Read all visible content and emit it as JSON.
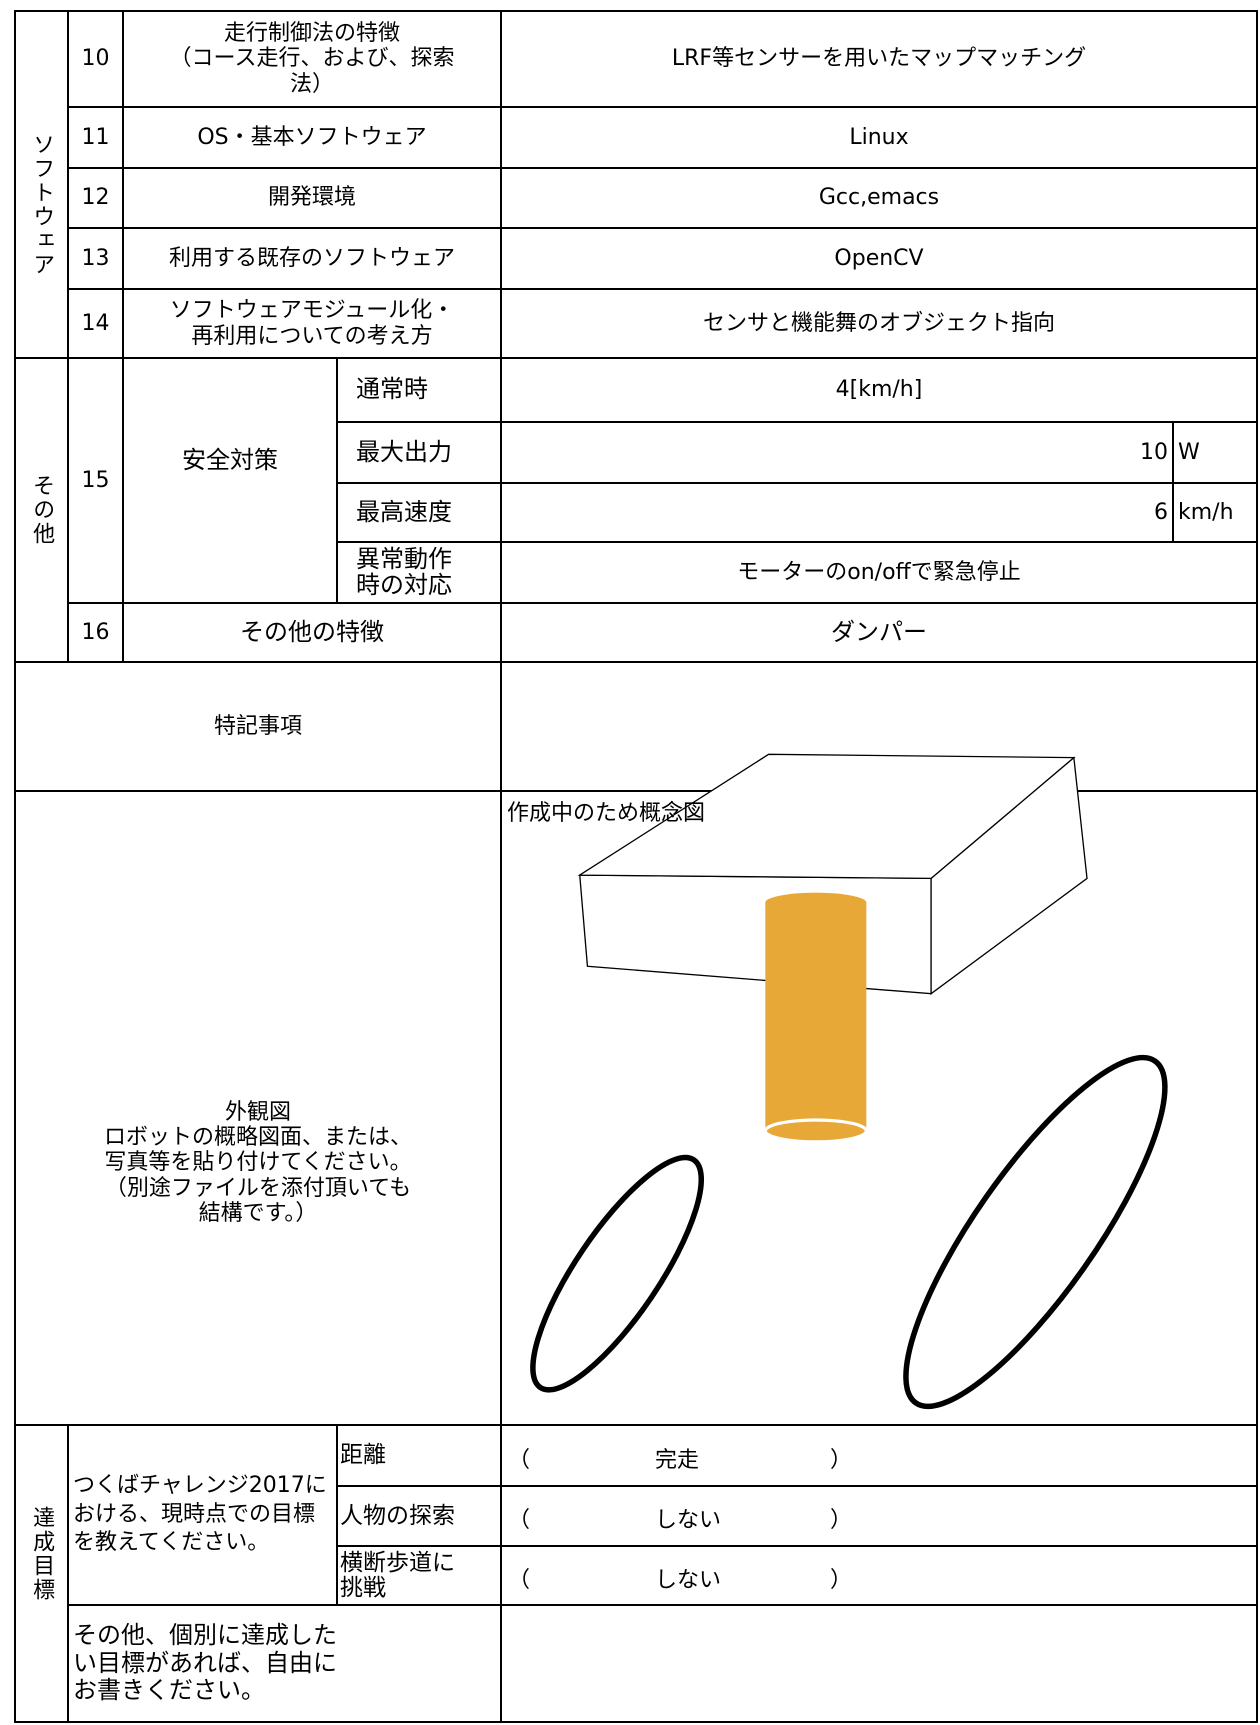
{
  "software": {
    "section": "ソフトウェア",
    "rows": [
      {
        "no": "10",
        "item": "走行制御法の特徴\n（コース走行、および、探索法）",
        "value": "LRF等センサーを用いたマップマッチング"
      },
      {
        "no": "11",
        "item": "OS・基本ソフトウェア",
        "value": "Linux"
      },
      {
        "no": "12",
        "item": "開発環境",
        "value": "Gcc,emacs"
      },
      {
        "no": "13",
        "item": "利用する既存のソフトウェア",
        "value": "OpenCV"
      },
      {
        "no": "14",
        "item": "ソフトウェアモジュール化・\n再利用についての考え方",
        "value": "センサと機能舞のオブジェクト指向"
      }
    ]
  },
  "other": {
    "section": "その他",
    "safety": {
      "no": "15",
      "item": "安全対策",
      "rows": [
        {
          "label": "通常時",
          "value": "4[km/h]"
        },
        {
          "label": "最大出力",
          "value": "10",
          "unit": "W"
        },
        {
          "label": "最高速度",
          "value": "6",
          "unit": "km/h"
        },
        {
          "label": "異常動作時の対応",
          "value": "モーターのon/offで緊急停止"
        }
      ]
    },
    "features": {
      "no": "16",
      "item": "その他の特徴",
      "value": "ダンパー"
    }
  },
  "notes": {
    "label": "特記事項"
  },
  "appearance": {
    "label": "外観図\nロボットの概略図面、または、\n写真等を貼り付けてください。\n（別途ファイルを添付頂いても\n結構です。）",
    "caption": "作成中のため概念図"
  },
  "goals": {
    "section": "達成目標",
    "question": "つくばチャレンジ2017における、現時点での目標を教えてください。",
    "open": "（",
    "close": "）",
    "rows": [
      {
        "label": "距離",
        "value": "完走"
      },
      {
        "label": "人物の探索",
        "value": "しない"
      },
      {
        "label": "横断歩道に挑戦",
        "value": "しない"
      }
    ],
    "other": "その他、個別に達成したい目標があれば、自由にお書きください。"
  }
}
